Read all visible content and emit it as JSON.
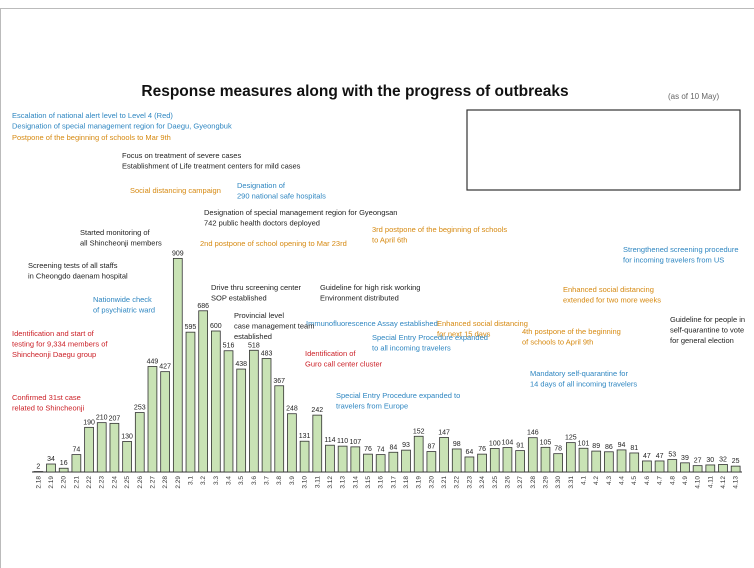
{
  "chart_data": {
    "type": "bar",
    "title": "Response measures along with the progress of outbreaks",
    "subtitle": "(as of 10 May)",
    "color": "#c9e3b5",
    "categories": [
      "2.18",
      "2.19",
      "2.20",
      "2.21",
      "2.22",
      "2.23",
      "2.24",
      "2.25",
      "2.26",
      "2.27",
      "2.28",
      "2.29",
      "3.1",
      "3.2",
      "3.3",
      "3.4",
      "3.5",
      "3.6",
      "3.7",
      "3.8",
      "3.9",
      "3.10",
      "3.11",
      "3.12",
      "3.13",
      "3.14",
      "3.15",
      "3.16",
      "3.17",
      "3.18",
      "3.19",
      "3.20",
      "3.21",
      "3.22",
      "3.23",
      "3.24",
      "3.25",
      "3.26",
      "3.27",
      "3.28",
      "3.29",
      "3.30",
      "3.31",
      "4.1",
      "4.2",
      "4.3",
      "4.4",
      "4.5",
      "4.6",
      "4.7",
      "4.8",
      "4.9",
      "4.10",
      "4.11",
      "4.12",
      "4.13"
    ],
    "values": [
      2,
      34,
      16,
      74,
      190,
      210,
      207,
      130,
      253,
      449,
      427,
      909,
      595,
      686,
      600,
      516,
      438,
      518,
      483,
      367,
      248,
      131,
      242,
      114,
      110,
      107,
      76,
      74,
      84,
      93,
      152,
      87,
      147,
      98,
      64,
      76,
      100,
      104,
      91,
      146,
      105,
      78,
      125,
      101,
      89,
      86,
      94,
      81,
      47,
      47,
      53,
      39,
      27,
      30,
      32,
      25
    ],
    "annotations": [
      {
        "lines": [
          "Escalation of national alert level to Level 4 (Red)",
          "Designation of special management region for Daegu, Gyeongbuk"
        ],
        "color": "#2e86c1"
      },
      {
        "lines": [
          "Postpone of the beginning of schools to Mar 9th"
        ],
        "color": "#d68910"
      },
      {
        "lines": [
          "Focus on treatment of severe cases",
          "Establishment of Life treatment centers for mild cases"
        ],
        "color": "#222222"
      },
      {
        "lines": [
          "Social distancing campaign"
        ],
        "color": "#d68910"
      },
      {
        "lines": [
          "Designation of",
          "290 national safe hospitals"
        ],
        "color": "#2e86c1"
      },
      {
        "lines": [
          "Designation of special management region for Gyeongsan",
          "742 public health doctors deployed"
        ],
        "color": "#222222"
      },
      {
        "lines": [
          "Started monitoring of",
          "all Shincheonji members"
        ],
        "color": "#222222"
      },
      {
        "lines": [
          "2nd postpone of school opening to Mar 23rd"
        ],
        "color": "#d68910"
      },
      {
        "lines": [
          "3rd postpone of the beginning of schools",
          "to April 6th"
        ],
        "color": "#d68910"
      },
      {
        "lines": [
          "Screening tests of all staffs",
          "in Cheongdo daenam hospital"
        ],
        "color": "#222222"
      },
      {
        "lines": [
          "Nationwide check",
          "of psychiatric ward"
        ],
        "color": "#2e86c1"
      },
      {
        "lines": [
          "Drive thru screening center",
          "SOP established"
        ],
        "color": "#222222"
      },
      {
        "lines": [
          "Guideline for high risk working",
          "Environment distributed"
        ],
        "color": "#222222"
      },
      {
        "lines": [
          "Immunofluorescence Assay established"
        ],
        "color": "#2e86c1"
      },
      {
        "lines": [
          "Provincial level",
          "case management team",
          "established"
        ],
        "color": "#222222"
      },
      {
        "lines": [
          "Enhanced social distancing",
          "for next 15 days"
        ],
        "color": "#d68910"
      },
      {
        "lines": [
          "Strengthened screening procedure",
          "for incoming travelers from US"
        ],
        "color": "#2e86c1"
      },
      {
        "lines": [
          "Enhanced social distancing",
          "extended for two more weeks"
        ],
        "color": "#d68910"
      },
      {
        "lines": [
          "Guideline for people in",
          "self-quarantine to vote",
          "for general election"
        ],
        "color": "#222222"
      },
      {
        "lines": [
          "Identification and start of",
          "testing for 9,334 members of",
          "Shincheonji Daegu group"
        ],
        "color": "#cb2027"
      },
      {
        "lines": [
          "Identification of",
          "Guro call center cluster"
        ],
        "color": "#cb2027"
      },
      {
        "lines": [
          "Special Entry Procedure expanded",
          "to all incoming travelers"
        ],
        "color": "#2e86c1"
      },
      {
        "lines": [
          "4th postpone of the beginning",
          "of schools to April 9th"
        ],
        "color": "#d68910"
      },
      {
        "lines": [
          "Mandatory self-quarantine for",
          "14 days of all incoming travelers"
        ],
        "color": "#2e86c1"
      },
      {
        "lines": [
          "Confirmed 31st case",
          "related to Shincheonji"
        ],
        "color": "#cb2027"
      },
      {
        "lines": [
          "Special Entry Procedure expanded to",
          "travelers from Europe"
        ],
        "color": "#2e86c1"
      }
    ]
  }
}
